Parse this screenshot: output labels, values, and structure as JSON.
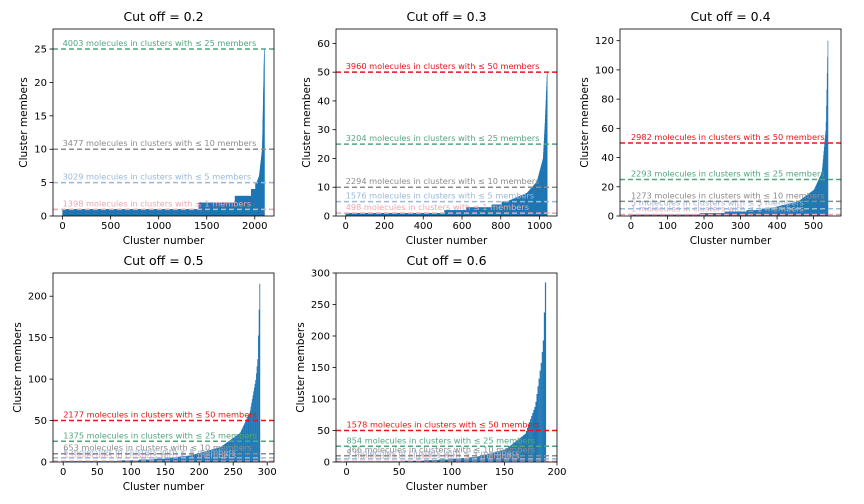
{
  "bar_color": "#1f77b4",
  "chart_data": [
    {
      "type": "bar",
      "title": "Cut off = 0.2",
      "xlabel": "Cluster number",
      "ylabel": "Cluster members",
      "n_clusters": 2100,
      "xlim": [
        -100,
        2200
      ],
      "ylim": [
        0,
        28
      ],
      "xticks": [
        0,
        500,
        1000,
        1500,
        2000
      ],
      "yticks": [
        0,
        5,
        10,
        15,
        20,
        25
      ],
      "size_profile": [
        [
          0,
          1
        ],
        [
          0.67,
          1
        ],
        [
          0.68,
          2
        ],
        [
          0.85,
          2
        ],
        [
          0.86,
          3
        ],
        [
          0.92,
          3
        ],
        [
          0.95,
          4
        ],
        [
          0.975,
          6
        ],
        [
          0.99,
          10
        ],
        [
          1.0,
          25
        ]
      ],
      "thresholds": [
        {
          "value": 1,
          "label": "1398 molecules in clusters with ≤ 1 members",
          "color": "#e8a7b4"
        },
        {
          "value": 5,
          "label": "3029 molecules in clusters with ≤ 5 members",
          "color": "#9ab8d8"
        },
        {
          "value": 10,
          "label": "3477 molecules in clusters with ≤ 10 members",
          "color": "#8c8c8c"
        },
        {
          "value": 25,
          "label": "4003 molecules in clusters with ≤ 25 members",
          "color": "#52a57e"
        }
      ]
    },
    {
      "type": "bar",
      "title": "Cut off = 0.3",
      "xlabel": "Cluster number",
      "ylabel": "Cluster members",
      "n_clusters": 1040,
      "xlim": [
        -50,
        1090
      ],
      "ylim": [
        0,
        65
      ],
      "xticks": [
        0,
        200,
        400,
        600,
        800,
        1000
      ],
      "yticks": [
        0,
        10,
        20,
        30,
        40,
        50,
        60
      ],
      "size_profile": [
        [
          0,
          1
        ],
        [
          0.48,
          1
        ],
        [
          0.5,
          2
        ],
        [
          0.7,
          3
        ],
        [
          0.8,
          5
        ],
        [
          0.9,
          8
        ],
        [
          0.95,
          12
        ],
        [
          0.98,
          20
        ],
        [
          0.99,
          33
        ],
        [
          1.0,
          50
        ]
      ],
      "thresholds": [
        {
          "value": 1,
          "label": "498 molecules in clusters with ≤ 1 members",
          "color": "#e8a7b4"
        },
        {
          "value": 5,
          "label": "1576 molecules in clusters with ≤ 5 members",
          "color": "#9ab8d8"
        },
        {
          "value": 10,
          "label": "2294 molecules in clusters with ≤ 10 members",
          "color": "#8c8c8c"
        },
        {
          "value": 25,
          "label": "3204 molecules in clusters with ≤ 25 members",
          "color": "#52a57e"
        },
        {
          "value": 50,
          "label": "3960 molecules in clusters with ≤ 50 members",
          "color": "#e8141b"
        }
      ]
    },
    {
      "type": "bar",
      "title": "Cut off = 0.4",
      "xlabel": "Cluster number",
      "ylabel": "Cluster members",
      "n_clusters": 540,
      "xlim": [
        -30,
        575
      ],
      "ylim": [
        0,
        128
      ],
      "xticks": [
        0,
        100,
        200,
        300,
        400,
        500
      ],
      "yticks": [
        0,
        20,
        40,
        60,
        80,
        100,
        120
      ],
      "size_profile": [
        [
          0,
          1
        ],
        [
          0.3,
          1
        ],
        [
          0.4,
          2
        ],
        [
          0.55,
          3
        ],
        [
          0.7,
          5
        ],
        [
          0.85,
          10
        ],
        [
          0.93,
          18
        ],
        [
          0.97,
          30
        ],
        [
          0.99,
          60
        ],
        [
          1.0,
          120
        ]
      ],
      "thresholds": [
        {
          "value": 1,
          "label": "1 molecules in clusters with ≤ 1 members",
          "color": "#e8a7b4"
        },
        {
          "value": 5,
          "label": "5 molecules in clusters with ≤ 5 members",
          "color": "#9ab8d8"
        },
        {
          "value": 10,
          "label": "1273 molecules in clusters with ≤ 10 members",
          "color": "#8c8c8c"
        },
        {
          "value": 25,
          "label": "2293 molecules in clusters with ≤ 25 members",
          "color": "#52a57e"
        },
        {
          "value": 50,
          "label": "2982 molecules in clusters with ≤ 50 members",
          "color": "#e8141b"
        }
      ]
    },
    {
      "type": "bar",
      "title": "Cut off = 0.5",
      "xlabel": "Cluster number",
      "ylabel": "Cluster members",
      "n_clusters": 290,
      "xlim": [
        -15,
        310
      ],
      "ylim": [
        0,
        228
      ],
      "xticks": [
        0,
        50,
        100,
        150,
        200,
        250,
        300
      ],
      "yticks": [
        0,
        50,
        100,
        150,
        200
      ],
      "size_profile": [
        [
          0,
          1
        ],
        [
          0.2,
          1
        ],
        [
          0.35,
          2
        ],
        [
          0.5,
          4
        ],
        [
          0.65,
          8
        ],
        [
          0.8,
          18
        ],
        [
          0.9,
          35
        ],
        [
          0.95,
          60
        ],
        [
          0.98,
          100
        ],
        [
          0.99,
          125
        ],
        [
          1.0,
          215
        ]
      ],
      "thresholds": [
        {
          "value": 1,
          "label": "1 molecules in clusters with ≤ 1 members",
          "color": "#e8a7b4"
        },
        {
          "value": 5,
          "label": "5 molecules in clusters with ≤ 5 members",
          "color": "#9ab8d8"
        },
        {
          "value": 10,
          "label": "653 molecules in clusters with ≤ 10 members",
          "color": "#8c8c8c"
        },
        {
          "value": 25,
          "label": "1375 molecules in clusters with ≤ 25 members",
          "color": "#52a57e"
        },
        {
          "value": 50,
          "label": "2177 molecules in clusters with ≤ 50 members",
          "color": "#e8141b"
        }
      ]
    },
    {
      "type": "bar",
      "title": "Cut off = 0.6",
      "xlabel": "Cluster number",
      "ylabel": "Cluster members",
      "n_clusters": 190,
      "xlim": [
        -10,
        200
      ],
      "ylim": [
        0,
        300
      ],
      "xticks": [
        0,
        50,
        100,
        150,
        200
      ],
      "yticks": [
        0,
        50,
        100,
        150,
        200,
        250,
        300
      ],
      "size_profile": [
        [
          0,
          1
        ],
        [
          0.2,
          1
        ],
        [
          0.35,
          2
        ],
        [
          0.5,
          4
        ],
        [
          0.65,
          8
        ],
        [
          0.8,
          20
        ],
        [
          0.9,
          45
        ],
        [
          0.95,
          90
        ],
        [
          0.98,
          160
        ],
        [
          0.99,
          195
        ],
        [
          1.0,
          285
        ]
      ],
      "thresholds": [
        {
          "value": 1,
          "label": "1 molecules in clusters with ≤ 1 members",
          "color": "#e8a7b4"
        },
        {
          "value": 5,
          "label": "5 molecules in clusters with ≤ 5 members",
          "color": "#9ab8d8"
        },
        {
          "value": 10,
          "label": "366 molecules in clusters with ≤ 10 members",
          "color": "#8c8c8c"
        },
        {
          "value": 25,
          "label": "854 molecules in clusters with ≤ 25 members",
          "color": "#52a57e"
        },
        {
          "value": 50,
          "label": "1578 molecules in clusters with ≤ 50 members",
          "color": "#e8141b"
        }
      ]
    }
  ]
}
